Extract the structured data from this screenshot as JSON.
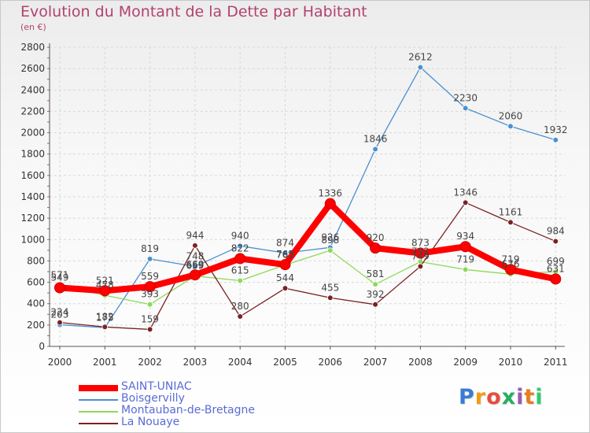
{
  "header": {
    "title": "Evolution du Montant de la Dette par Habitant",
    "subtitle": "(en €)"
  },
  "chart_data": {
    "type": "line",
    "title": "Evolution du Montant de la Dette par Habitant",
    "subtitle": "(en €)",
    "xlabel": "",
    "ylabel": "",
    "ylim": [
      0,
      2800
    ],
    "yticks": [
      0,
      200,
      400,
      600,
      800,
      1000,
      1200,
      1400,
      1600,
      1800,
      2000,
      2200,
      2400,
      2600,
      2800
    ],
    "categories": [
      "2000",
      "2001",
      "2002",
      "2003",
      "2004",
      "2005",
      "2006",
      "2007",
      "2008",
      "2009",
      "2010",
      "2011"
    ],
    "grid": true,
    "legend": "bottom",
    "series": [
      {
        "name": "SAINT-UNIAC",
        "color": "#ff0000",
        "values": [
          549,
          521,
          559,
          669,
          822,
          765,
          1336,
          920,
          873,
          934,
          719,
          631
        ]
      },
      {
        "name": "Boisgervilly",
        "color": "#4a90d0",
        "values": [
          203,
          175,
          819,
          748,
          940,
          874,
          926,
          1846,
          2612,
          2230,
          2060,
          1932
        ]
      },
      {
        "name": "Montauban-de-Bretagne",
        "color": "#8ed85a",
        "values": [
          571,
          478,
          393,
          659,
          615,
          763,
          898,
          581,
          792,
          719,
          676,
          699
        ]
      },
      {
        "name": "La Nouaye",
        "color": "#7a2222",
        "values": [
          224,
          182,
          159,
          944,
          280,
          544,
          455,
          392,
          749,
          1346,
          1161,
          984
        ]
      }
    ]
  },
  "logo": {
    "letters": [
      "P",
      "r",
      "o",
      "x",
      "i",
      "t",
      "i"
    ],
    "colors": [
      "#3a7bd5",
      "#f39c12",
      "#e74c3c",
      "#27ae60",
      "#9b59b6",
      "#e67e22",
      "#2ecc71"
    ]
  }
}
